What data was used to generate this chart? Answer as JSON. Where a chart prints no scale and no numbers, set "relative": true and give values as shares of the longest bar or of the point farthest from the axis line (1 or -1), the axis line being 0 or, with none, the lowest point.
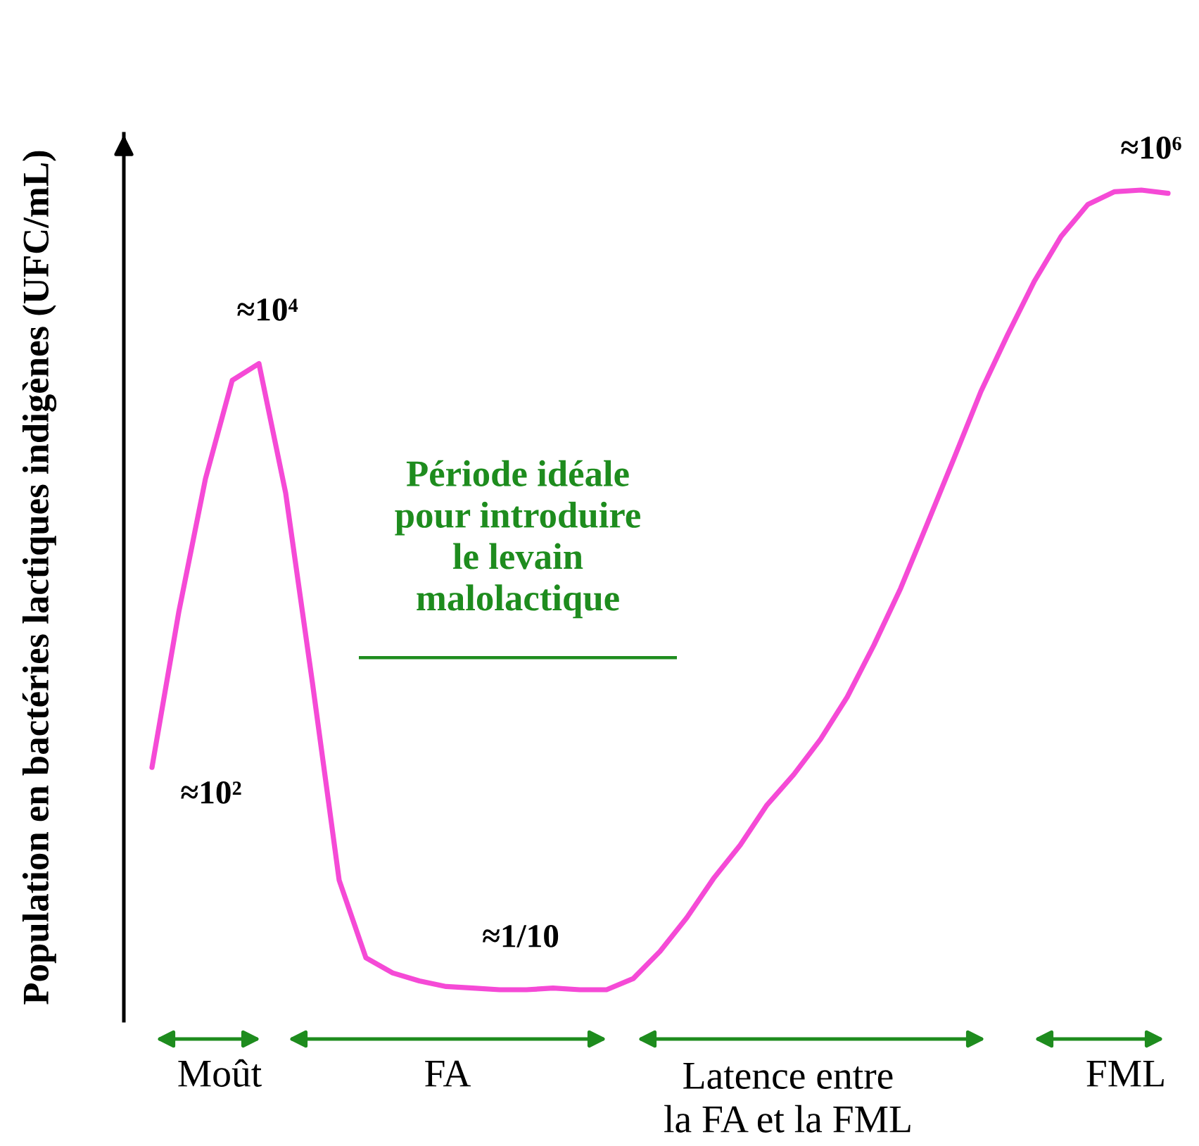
{
  "chart_data": {
    "type": "line",
    "relative": true,
    "color": "#f54ad6",
    "ylabel": "Population en bactéries lactiques indigènes (UFC/mL)",
    "categories": [
      null,
      null,
      null,
      null,
      null,
      null,
      null,
      null,
      null,
      null,
      null,
      null,
      null,
      null,
      null,
      null,
      null,
      null,
      null,
      null,
      null,
      null,
      null,
      null,
      null,
      null,
      null,
      null,
      null,
      null,
      null,
      null,
      null,
      null,
      null,
      null,
      null,
      null,
      null
    ],
    "values": [
      0.278,
      0.472,
      0.639,
      0.762,
      0.783,
      0.621,
      0.384,
      0.137,
      0.04,
      0.021,
      0.011,
      0.004,
      0.002,
      0,
      0,
      0.002,
      0,
      0,
      0.014,
      0.048,
      0.09,
      0.139,
      0.181,
      0.231,
      0.269,
      0.313,
      0.366,
      0.431,
      0.502,
      0.583,
      0.665,
      0.748,
      0.819,
      0.886,
      0.942,
      0.982,
      0.998,
      1,
      0.996
    ],
    "annotations": [
      "≈10⁴",
      "≈10²",
      "≈1/10",
      "≈10⁶",
      "Période idéale\npour introduire\nle levain\nmalolactique",
      "Moût",
      "FA",
      "Latence entre\nla FA et la FML",
      "FML"
    ],
    "marker": "none",
    "line_style": "solid",
    "grid": false,
    "legend": false
  }
}
